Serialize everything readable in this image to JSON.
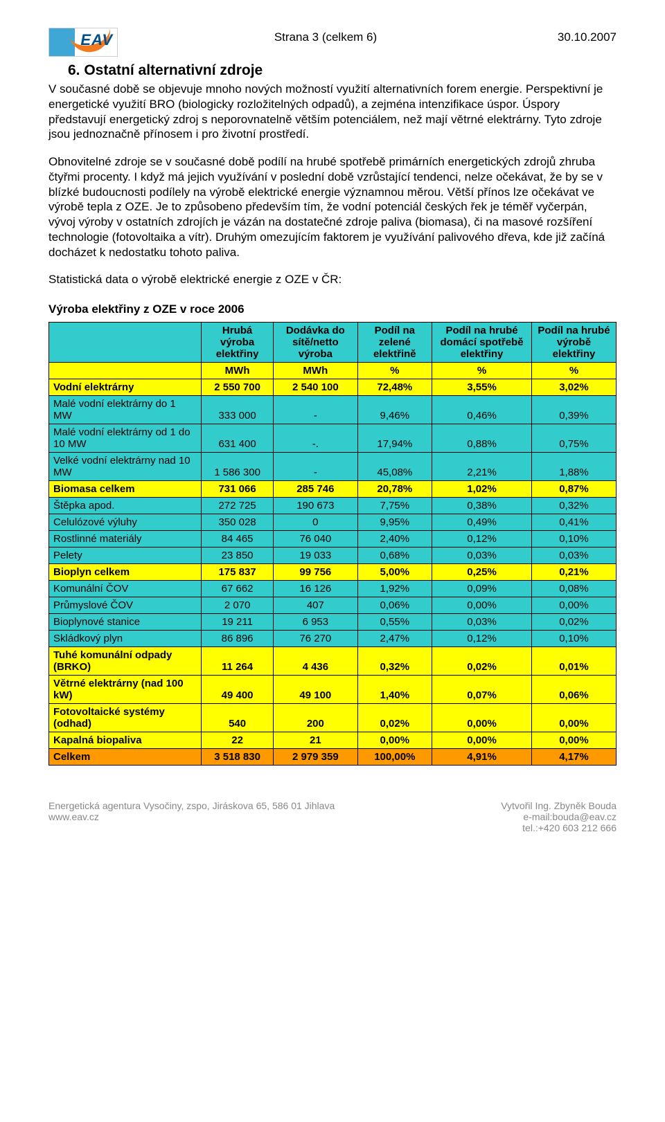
{
  "header": {
    "center": "Strana 3 (celkem 6)",
    "date": "30.10.2007",
    "logo_text": "EAV"
  },
  "section": {
    "heading": "6. Ostatní alternativní zdroje",
    "para1": "V současné době se objevuje mnoho nových možností využití alternativních forem energie. Perspektivní je energetické využití BRO (biologicky rozložitelných odpadů), a zejména intenzifikace úspor. Úspory představují energetický zdroj s neporovnatelně větším potenciálem, než mají větrné elektrárny. Tyto zdroje jsou jednoznačně přínosem i pro životní prostředí.",
    "para2": "Obnovitelné zdroje se v současné době podílí na hrubé spotřebě primárních energetických zdrojů zhruba čtyřmi procenty. I když má jejich využívání v poslední době vzrůstající tendenci, nelze očekávat, že by se v blízké budoucnosti podílely na výrobě elektrické energie významnou měrou. Větší přínos lze očekávat ve výrobě tepla z OZE. Je to způsobeno především tím, že vodní potenciál českých řek je téměř vyčerpán, vývoj výroby v ostatních zdrojích je vázán na dostatečné zdroje paliva (biomasa), či na masové rozšíření technologie (fotovoltaika a vítr). Druhým omezujícím faktorem je využívání palivového dřeva, kde již začíná docházet k nedostatku tohoto paliva.",
    "para3": "Statistická data o výrobě elektrické energie z OZE v ČR:",
    "table_title": "Výroba elektřiny z OZE v roce 2006"
  },
  "table": {
    "headers": {
      "c1": "Hrubá výroba elektřiny",
      "c2": "Dodávka do sítě/netto výroba",
      "c3": "Podíl na zelené elektřině",
      "c4": "Podíl na hrubé domácí spotřebě elektřiny",
      "c5": "Podíl na hrubé výrobě elektřiny"
    },
    "units": {
      "u1": "MWh",
      "u2": "MWh",
      "u3": "%",
      "u4": "%",
      "u5": "%"
    },
    "rows": [
      {
        "color": "yellow",
        "bold": true,
        "label": "Vodní elektrárny",
        "v": [
          "2 550 700",
          "2 540 100",
          "72,48%",
          "3,55%",
          "3,02%"
        ]
      },
      {
        "color": "blue",
        "bold": false,
        "label": "Malé vodní elektrárny do 1 MW",
        "v": [
          "333 000",
          "-",
          "9,46%",
          "0,46%",
          "0,39%"
        ]
      },
      {
        "color": "blue",
        "bold": false,
        "label": "Malé vodní elektrárny od 1 do 10 MW",
        "v": [
          "631 400",
          "-.",
          "17,94%",
          "0,88%",
          "0,75%"
        ]
      },
      {
        "color": "blue",
        "bold": false,
        "label": "Velké vodní elektrárny nad 10 MW",
        "v": [
          "1 586 300",
          "-",
          "45,08%",
          "2,21%",
          "1,88%"
        ]
      },
      {
        "color": "yellow",
        "bold": true,
        "label": "Biomasa celkem",
        "v": [
          "731 066",
          "285 746",
          "20,78%",
          "1,02%",
          "0,87%"
        ]
      },
      {
        "color": "blue",
        "bold": false,
        "label": "Štěpka apod.",
        "v": [
          "272 725",
          "190 673",
          "7,75%",
          "0,38%",
          "0,32%"
        ]
      },
      {
        "color": "blue",
        "bold": false,
        "label": "Celulózové výluhy",
        "v": [
          "350 028",
          "0",
          "9,95%",
          "0,49%",
          "0,41%"
        ]
      },
      {
        "color": "blue",
        "bold": false,
        "label": "Rostlinné materiály",
        "v": [
          "84 465",
          "76 040",
          "2,40%",
          "0,12%",
          "0,10%"
        ]
      },
      {
        "color": "blue",
        "bold": false,
        "label": "Pelety",
        "v": [
          "23 850",
          "19 033",
          "0,68%",
          "0,03%",
          "0,03%"
        ]
      },
      {
        "color": "yellow",
        "bold": true,
        "label": "Bioplyn celkem",
        "v": [
          "175 837",
          "99 756",
          "5,00%",
          "0,25%",
          "0,21%"
        ]
      },
      {
        "color": "blue",
        "bold": false,
        "label": "Komunální ČOV",
        "v": [
          "67 662",
          "16 126",
          "1,92%",
          "0,09%",
          "0,08%"
        ]
      },
      {
        "color": "blue",
        "bold": false,
        "label": "Průmyslové ČOV",
        "v": [
          "2 070",
          "407",
          "0,06%",
          "0,00%",
          "0,00%"
        ]
      },
      {
        "color": "blue",
        "bold": false,
        "label": "Bioplynové stanice",
        "v": [
          "19 211",
          "6 953",
          "0,55%",
          "0,03%",
          "0,02%"
        ]
      },
      {
        "color": "blue",
        "bold": false,
        "label": "Skládkový plyn",
        "v": [
          "86 896",
          "76 270",
          "2,47%",
          "0,12%",
          "0,10%"
        ]
      },
      {
        "color": "yellow",
        "bold": true,
        "label": "Tuhé komunální odpady (BRKO)",
        "v": [
          "11 264",
          "4 436",
          "0,32%",
          "0,02%",
          "0,01%"
        ]
      },
      {
        "color": "yellow",
        "bold": true,
        "label": "Větrné elektrárny (nad 100 kW)",
        "v": [
          "49 400",
          "49 100",
          "1,40%",
          "0,07%",
          "0,06%"
        ]
      },
      {
        "color": "yellow",
        "bold": true,
        "label": "Fotovoltaické systémy (odhad)",
        "v": [
          "540",
          "200",
          "0,02%",
          "0,00%",
          "0,00%"
        ]
      },
      {
        "color": "yellow",
        "bold": true,
        "label": "Kapalná biopaliva",
        "v": [
          "22",
          "21",
          "0,00%",
          "0,00%",
          "0,00%"
        ]
      },
      {
        "color": "orange",
        "bold": true,
        "label": "Celkem",
        "v": [
          "3 518 830",
          "2 979 359",
          "100,00%",
          "4,91%",
          "4,17%"
        ]
      }
    ],
    "colors": {
      "blue": "#33cccc",
      "yellow": "#ffff00",
      "orange": "#ff9900"
    }
  },
  "footer": {
    "left1": "Energetická agentura Vysočiny, zspo, Jiráskova 65, 586 01 Jihlava",
    "left2": "www.eav.cz",
    "right1": "Vytvořil Ing. Zbyněk Bouda",
    "right2": "e-mail:bouda@eav.cz",
    "right3": "tel.:+420 603 212 666"
  }
}
